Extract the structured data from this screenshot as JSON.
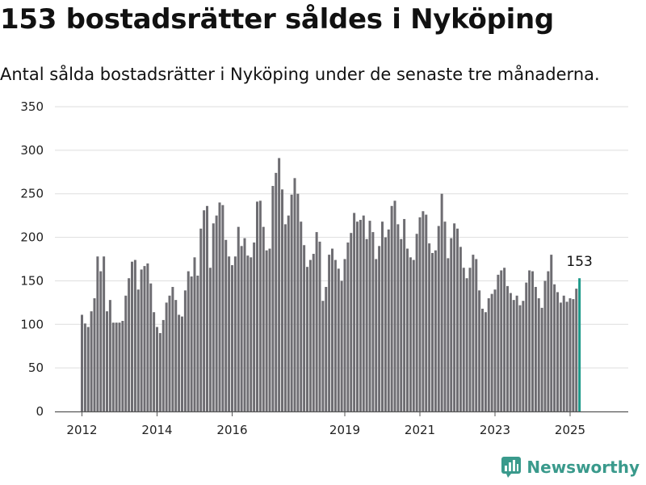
{
  "header": {
    "title": "153 bostadsrätter såldes i Nyköping",
    "subtitle": "Antal sålda bostadsrätter i Nyköping under de senaste tre månaderna."
  },
  "brand": {
    "name": "Newsworthy",
    "icon": "newsworthy-logo-icon",
    "color": "#3a9a8c"
  },
  "colors": {
    "bar": "#6e6d72",
    "highlight": "#1e9a8a",
    "grid": "#dddddd",
    "axis": "#555555"
  },
  "chart_data": {
    "type": "bar",
    "ylim": [
      0,
      350
    ],
    "yticks": [
      0,
      50,
      100,
      150,
      200,
      250,
      300,
      350
    ],
    "xtick_labels": [
      "2012",
      "2014",
      "2016",
      "2019",
      "2021",
      "2023",
      "2025"
    ],
    "grid": true,
    "start": "2012-01",
    "highlight_label": "153",
    "values": [
      111,
      101,
      97,
      115,
      130,
      178,
      161,
      178,
      115,
      128,
      102,
      102,
      102,
      104,
      133,
      153,
      172,
      174,
      140,
      163,
      167,
      170,
      147,
      114,
      97,
      90,
      105,
      125,
      133,
      143,
      128,
      111,
      109,
      139,
      161,
      155,
      177,
      156,
      210,
      231,
      236,
      165,
      216,
      225,
      240,
      237,
      197,
      178,
      168,
      178,
      212,
      190,
      199,
      179,
      177,
      194,
      241,
      242,
      212,
      185,
      187,
      259,
      274,
      291,
      255,
      215,
      225,
      249,
      268,
      250,
      218,
      191,
      166,
      174,
      181,
      206,
      195,
      127,
      143,
      180,
      187,
      174,
      164,
      150,
      175,
      194,
      205,
      228,
      218,
      220,
      225,
      198,
      219,
      206,
      175,
      190,
      218,
      200,
      209,
      236,
      242,
      215,
      198,
      221,
      187,
      177,
      174,
      204,
      223,
      230,
      226,
      193,
      182,
      185,
      213,
      250,
      218,
      176,
      199,
      216,
      210,
      189,
      165,
      153,
      165,
      180,
      175,
      139,
      118,
      114,
      130,
      135,
      140,
      157,
      162,
      165,
      144,
      136,
      128,
      133,
      122,
      127,
      148,
      162,
      161,
      143,
      130,
      119,
      150,
      161,
      180,
      146,
      137,
      125,
      133,
      126,
      130,
      129,
      141,
      153
    ]
  }
}
